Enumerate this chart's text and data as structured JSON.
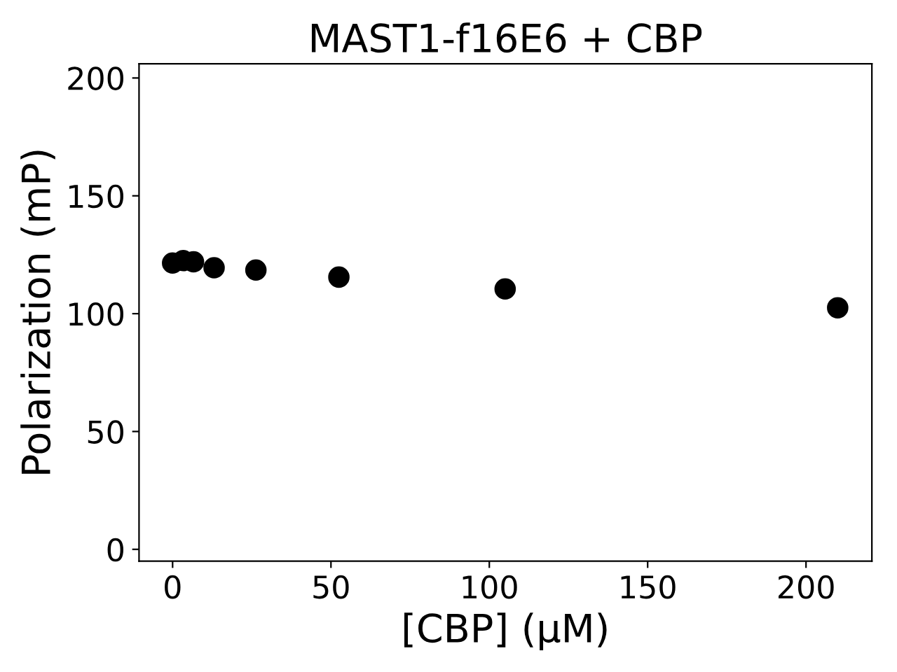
{
  "chart_data": {
    "type": "scatter",
    "title": "MAST1-f16E6 + CBP",
    "xlabel": "[CBP] (μM)",
    "ylabel": "Polarization (mP)",
    "x": [
      0,
      3.3,
      6.6,
      13.1,
      26.3,
      52.5,
      105,
      210
    ],
    "series": [
      {
        "color": "#000000",
        "values": [
          121.5,
          122.5,
          122,
          119.5,
          118.5,
          115.5,
          110.5,
          102.5
        ]
      }
    ],
    "xlim": [
      -10.6,
      220.8
    ],
    "ylim": [
      -5,
      206
    ],
    "xticks": [
      0,
      50,
      100,
      150,
      200
    ],
    "yticks": [
      0,
      50,
      100,
      150,
      200
    ],
    "marker": "circle",
    "grid": false
  }
}
